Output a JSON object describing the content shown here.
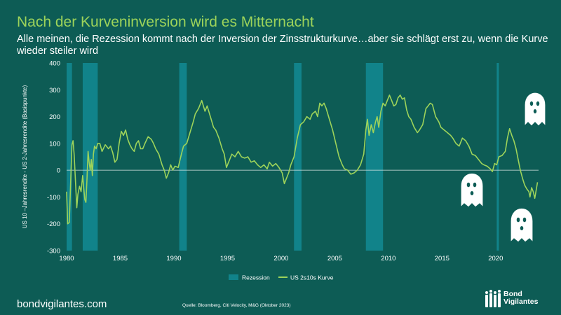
{
  "title": "Nach der Kurveninversion wird es Mitternacht",
  "subtitle": "Alle meinen, die Rezession kommt nach der Inversion der Zinsstrukturkurve…aber sie schlägt erst zu, wenn die Kurve wieder steiler wird",
  "footer": {
    "site": "bondvigilantes.com",
    "source": "Quelle: Bloomberg, Citi Velocity, M&G (Oktober 2023)",
    "brand_line1": "Bond",
    "brand_line2": "Vigilantes"
  },
  "colors": {
    "background": "#0d5c55",
    "title": "#9dd35a",
    "line": "#9dd35a",
    "recession": "#11838a",
    "zero_line": "#d9e6e4"
  },
  "icons": [
    "ghost-icon",
    "ghost-icon",
    "ghost-icon",
    "people-logo-icon"
  ],
  "chart_data": {
    "type": "line",
    "ylabel": "US 10 –Jahresrendite - US 2-Jahresrendite (Basispunkte)",
    "xlabel": "",
    "xlim": [
      1980,
      2024
    ],
    "ylim": [
      -300,
      400
    ],
    "x_ticks": [
      1980,
      1985,
      1990,
      1995,
      2000,
      2005,
      2010,
      2015,
      2020
    ],
    "y_ticks": [
      400,
      300,
      200,
      100,
      0,
      -100,
      -200,
      -300
    ],
    "legend_position": "bottom-center",
    "grid": false,
    "legend": [
      {
        "label": "Rezession",
        "type": "box"
      },
      {
        "label": "US 2s10s Kurve",
        "type": "line"
      }
    ],
    "recessions": [
      [
        1980.0,
        1980.5
      ],
      [
        1981.5,
        1982.9
      ],
      [
        1990.5,
        1991.2
      ],
      [
        2001.2,
        2001.9
      ],
      [
        2007.9,
        2009.5
      ],
      [
        2020.1,
        2020.3
      ]
    ],
    "series": [
      {
        "name": "US 2s10s Kurve",
        "points": [
          [
            1980.0,
            -80
          ],
          [
            1980.1,
            -200
          ],
          [
            1980.25,
            -195
          ],
          [
            1980.4,
            -20
          ],
          [
            1980.5,
            95
          ],
          [
            1980.6,
            110
          ],
          [
            1980.7,
            60
          ],
          [
            1980.85,
            -60
          ],
          [
            1980.95,
            -140
          ],
          [
            1981.05,
            -90
          ],
          [
            1981.2,
            -60
          ],
          [
            1981.35,
            -80
          ],
          [
            1981.5,
            -20
          ],
          [
            1981.6,
            -70
          ],
          [
            1981.7,
            -110
          ],
          [
            1981.8,
            -120
          ],
          [
            1981.9,
            -30
          ],
          [
            1982.0,
            70
          ],
          [
            1982.1,
            30
          ],
          [
            1982.2,
            0
          ],
          [
            1982.3,
            40
          ],
          [
            1982.4,
            -20
          ],
          [
            1982.5,
            60
          ],
          [
            1982.6,
            90
          ],
          [
            1982.75,
            80
          ],
          [
            1982.9,
            100
          ],
          [
            1983.1,
            100
          ],
          [
            1983.3,
            70
          ],
          [
            1983.6,
            95
          ],
          [
            1983.9,
            80
          ],
          [
            1984.1,
            90
          ],
          [
            1984.3,
            65
          ],
          [
            1984.5,
            30
          ],
          [
            1984.7,
            40
          ],
          [
            1984.9,
            100
          ],
          [
            1985.1,
            145
          ],
          [
            1985.3,
            130
          ],
          [
            1985.5,
            150
          ],
          [
            1985.7,
            115
          ],
          [
            1985.9,
            95
          ],
          [
            1986.1,
            80
          ],
          [
            1986.3,
            70
          ],
          [
            1986.5,
            100
          ],
          [
            1986.7,
            110
          ],
          [
            1986.9,
            80
          ],
          [
            1987.1,
            80
          ],
          [
            1987.3,
            100
          ],
          [
            1987.6,
            125
          ],
          [
            1987.9,
            115
          ],
          [
            1988.1,
            100
          ],
          [
            1988.3,
            80
          ],
          [
            1988.6,
            60
          ],
          [
            1988.9,
            20
          ],
          [
            1989.1,
            0
          ],
          [
            1989.3,
            -30
          ],
          [
            1989.5,
            -10
          ],
          [
            1989.7,
            20
          ],
          [
            1989.9,
            0
          ],
          [
            1990.1,
            15
          ],
          [
            1990.4,
            10
          ],
          [
            1990.7,
            60
          ],
          [
            1990.9,
            90
          ],
          [
            1991.2,
            100
          ],
          [
            1991.5,
            140
          ],
          [
            1991.8,
            180
          ],
          [
            1992.0,
            210
          ],
          [
            1992.3,
            230
          ],
          [
            1992.6,
            260
          ],
          [
            1992.9,
            220
          ],
          [
            1993.1,
            240
          ],
          [
            1993.4,
            200
          ],
          [
            1993.7,
            160
          ],
          [
            1993.9,
            150
          ],
          [
            1994.2,
            120
          ],
          [
            1994.5,
            80
          ],
          [
            1994.7,
            60
          ],
          [
            1994.9,
            10
          ],
          [
            1995.1,
            30
          ],
          [
            1995.4,
            60
          ],
          [
            1995.7,
            50
          ],
          [
            1996.0,
            70
          ],
          [
            1996.3,
            50
          ],
          [
            1996.6,
            45
          ],
          [
            1996.9,
            50
          ],
          [
            1997.2,
            30
          ],
          [
            1997.5,
            35
          ],
          [
            1997.8,
            20
          ],
          [
            1998.1,
            10
          ],
          [
            1998.4,
            20
          ],
          [
            1998.7,
            5
          ],
          [
            1998.9,
            30
          ],
          [
            1999.2,
            15
          ],
          [
            1999.5,
            25
          ],
          [
            1999.8,
            10
          ],
          [
            2000.1,
            -10
          ],
          [
            2000.3,
            -50
          ],
          [
            2000.5,
            -30
          ],
          [
            2000.7,
            -10
          ],
          [
            2000.9,
            20
          ],
          [
            2001.2,
            50
          ],
          [
            2001.5,
            120
          ],
          [
            2001.8,
            170
          ],
          [
            2002.1,
            180
          ],
          [
            2002.4,
            200
          ],
          [
            2002.7,
            190
          ],
          [
            2002.9,
            210
          ],
          [
            2003.2,
            220
          ],
          [
            2003.4,
            200
          ],
          [
            2003.6,
            250
          ],
          [
            2003.8,
            240
          ],
          [
            2004.0,
            250
          ],
          [
            2004.2,
            230
          ],
          [
            2004.5,
            190
          ],
          [
            2004.8,
            150
          ],
          [
            2005.1,
            100
          ],
          [
            2005.4,
            50
          ],
          [
            2005.7,
            20
          ],
          [
            2005.9,
            5
          ],
          [
            2006.2,
            0
          ],
          [
            2006.5,
            -15
          ],
          [
            2006.8,
            -10
          ],
          [
            2007.1,
            0
          ],
          [
            2007.4,
            20
          ],
          [
            2007.7,
            60
          ],
          [
            2007.9,
            150
          ],
          [
            2008.05,
            190
          ],
          [
            2008.2,
            130
          ],
          [
            2008.4,
            170
          ],
          [
            2008.6,
            140
          ],
          [
            2008.8,
            180
          ],
          [
            2008.95,
            200
          ],
          [
            2009.1,
            160
          ],
          [
            2009.3,
            220
          ],
          [
            2009.5,
            250
          ],
          [
            2009.7,
            240
          ],
          [
            2009.9,
            260
          ],
          [
            2010.1,
            280
          ],
          [
            2010.3,
            260
          ],
          [
            2010.5,
            240
          ],
          [
            2010.7,
            245
          ],
          [
            2010.9,
            270
          ],
          [
            2011.1,
            280
          ],
          [
            2011.3,
            265
          ],
          [
            2011.5,
            270
          ],
          [
            2011.7,
            225
          ],
          [
            2011.9,
            200
          ],
          [
            2012.1,
            190
          ],
          [
            2012.4,
            160
          ],
          [
            2012.7,
            140
          ],
          [
            2012.9,
            150
          ],
          [
            2013.2,
            170
          ],
          [
            2013.5,
            230
          ],
          [
            2013.7,
            240
          ],
          [
            2013.9,
            250
          ],
          [
            2014.1,
            245
          ],
          [
            2014.4,
            200
          ],
          [
            2014.7,
            180
          ],
          [
            2014.9,
            160
          ],
          [
            2015.2,
            150
          ],
          [
            2015.5,
            140
          ],
          [
            2015.8,
            130
          ],
          [
            2016.0,
            120
          ],
          [
            2016.3,
            100
          ],
          [
            2016.6,
            90
          ],
          [
            2016.9,
            120
          ],
          [
            2017.2,
            110
          ],
          [
            2017.5,
            90
          ],
          [
            2017.8,
            60
          ],
          [
            2018.1,
            55
          ],
          [
            2018.4,
            40
          ],
          [
            2018.7,
            25
          ],
          [
            2018.9,
            20
          ],
          [
            2019.2,
            15
          ],
          [
            2019.5,
            5
          ],
          [
            2019.7,
            -5
          ],
          [
            2019.9,
            25
          ],
          [
            2020.1,
            20
          ],
          [
            2020.3,
            50
          ],
          [
            2020.6,
            55
          ],
          [
            2020.9,
            70
          ],
          [
            2021.1,
            120
          ],
          [
            2021.3,
            155
          ],
          [
            2021.5,
            130
          ],
          [
            2021.7,
            110
          ],
          [
            2021.9,
            80
          ],
          [
            2022.1,
            40
          ],
          [
            2022.3,
            0
          ],
          [
            2022.5,
            -30
          ],
          [
            2022.7,
            -55
          ],
          [
            2022.9,
            -70
          ],
          [
            2023.1,
            -80
          ],
          [
            2023.2,
            -100
          ],
          [
            2023.35,
            -65
          ],
          [
            2023.5,
            -80
          ],
          [
            2023.65,
            -105
          ],
          [
            2023.8,
            -70
          ],
          [
            2023.9,
            -45
          ]
        ]
      }
    ]
  }
}
